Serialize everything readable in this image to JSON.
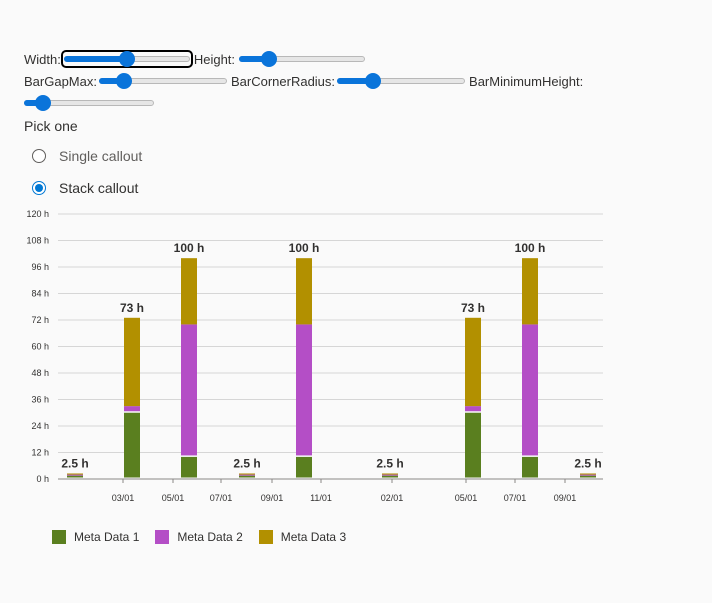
{
  "controls": {
    "width_label": "Width:",
    "height_label": "Height:",
    "bargapmax_label": "BarGapMax:",
    "barcornerradius_label": "BarCornerRadius:",
    "barminimumheight_label": "BarMinimumHeight:",
    "width_value": 0.5,
    "height_value": 0.2,
    "bargapmax_value": 0.15,
    "barcornerradius_value": 0.25,
    "barminimumheight_value": 0.1
  },
  "radio_group": {
    "label": "Pick one",
    "options": [
      {
        "label": "Single callout",
        "checked": false
      },
      {
        "label": "Stack callout",
        "checked": true
      }
    ]
  },
  "colors": {
    "series1": "#5a7f1f",
    "series2": "#b44ec6",
    "series3": "#b29000",
    "slider": "#0a74da",
    "radio": "#0078d4"
  },
  "chart_data": {
    "type": "bar",
    "stacked": true,
    "ylim": [
      0,
      120
    ],
    "y_ticks": [
      "0 h",
      "12 h",
      "24 h",
      "36 h",
      "48 h",
      "60 h",
      "72 h",
      "84 h",
      "96 h",
      "108 h",
      "120 h"
    ],
    "x_ticks": [
      "03/01",
      "05/01",
      "07/01",
      "09/01",
      "11/01",
      "02/01",
      "05/01",
      "07/01",
      "09/01"
    ],
    "grid": true,
    "legend_position": "bottom-left",
    "bars": [
      {
        "label": "2.5 h",
        "values": [
          1.5,
          0.5,
          0.5
        ]
      },
      {
        "label": "73 h",
        "values": [
          30,
          3,
          40
        ]
      },
      {
        "label": "100 h",
        "values": [
          10,
          60,
          30
        ]
      },
      {
        "label": "2.5 h",
        "values": [
          1.5,
          0.5,
          0.5
        ]
      },
      {
        "label": "100 h",
        "values": [
          10,
          60,
          30
        ]
      },
      {
        "label": "2.5 h",
        "values": [
          1.5,
          0.5,
          0.5
        ]
      },
      {
        "label": "73 h",
        "values": [
          30,
          3,
          40
        ]
      },
      {
        "label": "100 h",
        "values": [
          10,
          60,
          30
        ]
      },
      {
        "label": "2.5 h",
        "values": [
          1.5,
          0.5,
          0.5
        ]
      }
    ],
    "series": [
      {
        "name": "Meta Data 1"
      },
      {
        "name": "Meta Data 2"
      },
      {
        "name": "Meta Data 3"
      }
    ]
  }
}
